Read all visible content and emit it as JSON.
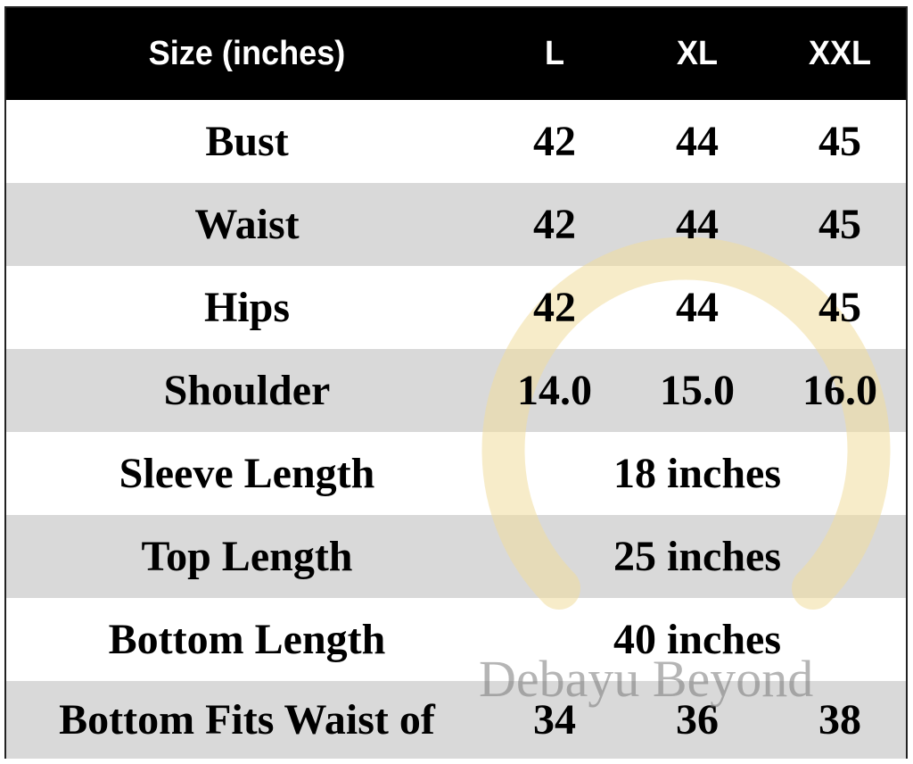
{
  "header": {
    "label": "Size (inches)",
    "sizes": [
      "L",
      "XL",
      "XXL"
    ]
  },
  "rows": [
    {
      "label": "Bust",
      "values": [
        "42",
        "44",
        "45"
      ]
    },
    {
      "label": "Waist",
      "values": [
        "42",
        "44",
        "45"
      ]
    },
    {
      "label": "Hips",
      "values": [
        "42",
        "44",
        "45"
      ]
    },
    {
      "label": "Shoulder",
      "values": [
        "14.0",
        "15.0",
        "16.0"
      ]
    },
    {
      "label": "Sleeve Length",
      "all": "18 inches"
    },
    {
      "label": "Top Length",
      "all": "25 inches"
    },
    {
      "label": "Bottom Length",
      "all": "40 inches"
    },
    {
      "label": "Bottom Fits Waist of",
      "values": [
        "34",
        "36",
        "38"
      ]
    }
  ],
  "watermark": {
    "text": "Debayu Beyond",
    "ring_color": "#f3e3b0"
  },
  "colors": {
    "header_bg": "#000000",
    "stripe": "#d9d9d9"
  }
}
